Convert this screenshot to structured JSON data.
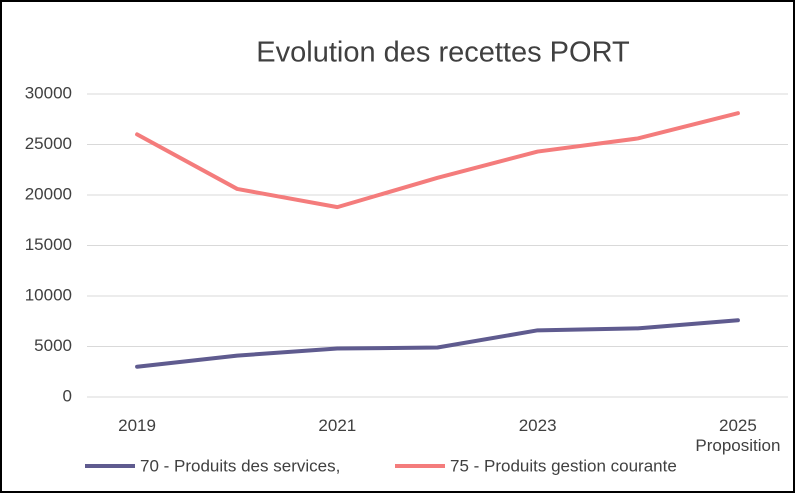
{
  "chart_data": {
    "type": "line",
    "title": "Evolution des recettes PORT",
    "categories": [
      "2019",
      null,
      "2021",
      null,
      "2023",
      null,
      "2025 Proposition"
    ],
    "series": [
      {
        "name": "70 - Produits des services,",
        "color": "#5f5b8f",
        "values": [
          3000,
          4100,
          4800,
          4900,
          6600,
          6800,
          7600
        ]
      },
      {
        "name": "75 - Produits gestion courante",
        "color": "#f47c7c",
        "values": [
          26000,
          20600,
          18800,
          21700,
          24300,
          25600,
          28100
        ]
      }
    ],
    "ylim": [
      0,
      30000
    ],
    "yticks": [
      0,
      5000,
      10000,
      15000,
      20000,
      25000,
      30000
    ],
    "grid": true,
    "legend": "bottom"
  }
}
